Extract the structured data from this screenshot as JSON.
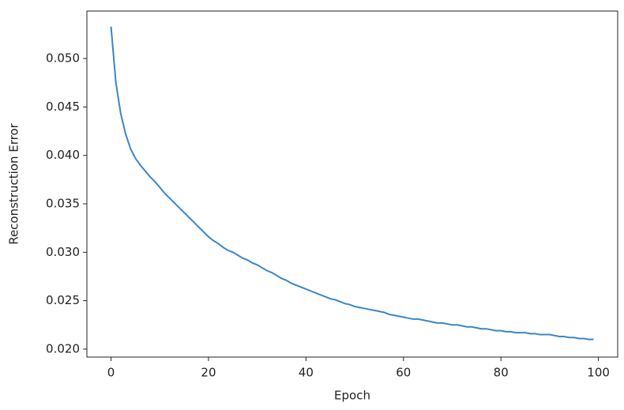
{
  "chart_data": {
    "type": "line",
    "x_label": "Epoch",
    "y_label": "Reconstruction Error",
    "x": [
      0,
      1,
      2,
      3,
      4,
      5,
      6,
      7,
      8,
      9,
      10,
      11,
      12,
      13,
      14,
      15,
      16,
      17,
      18,
      19,
      20,
      21,
      22,
      23,
      24,
      25,
      26,
      27,
      28,
      29,
      30,
      31,
      32,
      33,
      34,
      35,
      36,
      37,
      38,
      39,
      40,
      41,
      42,
      43,
      44,
      45,
      46,
      47,
      48,
      49,
      50,
      51,
      52,
      53,
      54,
      55,
      56,
      57,
      58,
      59,
      60,
      61,
      62,
      63,
      64,
      65,
      66,
      67,
      68,
      69,
      70,
      71,
      72,
      73,
      74,
      75,
      76,
      77,
      78,
      79,
      80,
      81,
      82,
      83,
      84,
      85,
      86,
      87,
      88,
      89,
      90,
      91,
      92,
      93,
      94,
      95,
      96,
      97,
      98,
      99
    ],
    "series": [
      {
        "color": "#3a86c8",
        "values": [
          0.0533,
          0.0475,
          0.0443,
          0.0422,
          0.0407,
          0.0397,
          0.039,
          0.0384,
          0.0378,
          0.0373,
          0.0367,
          0.0361,
          0.0356,
          0.0351,
          0.0346,
          0.0341,
          0.0336,
          0.0331,
          0.0326,
          0.0321,
          0.0316,
          0.0312,
          0.0309,
          0.0305,
          0.0302,
          0.03,
          0.0297,
          0.0294,
          0.0292,
          0.0289,
          0.0287,
          0.0284,
          0.0281,
          0.0279,
          0.0276,
          0.0273,
          0.0271,
          0.0268,
          0.0266,
          0.0264,
          0.0262,
          0.026,
          0.0258,
          0.0256,
          0.0254,
          0.0252,
          0.0251,
          0.0249,
          0.0247,
          0.0246,
          0.0244,
          0.0243,
          0.0242,
          0.0241,
          0.024,
          0.0239,
          0.0238,
          0.0236,
          0.0235,
          0.0234,
          0.0233,
          0.0232,
          0.0231,
          0.0231,
          0.023,
          0.0229,
          0.0228,
          0.0227,
          0.0227,
          0.0226,
          0.0225,
          0.0225,
          0.0224,
          0.0223,
          0.0223,
          0.0222,
          0.0221,
          0.0221,
          0.022,
          0.0219,
          0.0219,
          0.0218,
          0.0218,
          0.0217,
          0.0217,
          0.0217,
          0.0216,
          0.0216,
          0.0215,
          0.0215,
          0.0215,
          0.0214,
          0.0213,
          0.0213,
          0.0212,
          0.0212,
          0.0211,
          0.0211,
          0.021,
          0.021
        ]
      }
    ],
    "xlim": [
      -4.95,
      103.95
    ],
    "xticks": [
      0,
      20,
      40,
      60,
      80,
      100
    ],
    "ylim": [
      0.01918,
      0.0549
    ],
    "yticks": [
      {
        "value": 0.02,
        "label": "0.020"
      },
      {
        "value": 0.025,
        "label": "0.025"
      },
      {
        "value": 0.03,
        "label": "0.030"
      },
      {
        "value": 0.035,
        "label": "0.035"
      },
      {
        "value": 0.04,
        "label": "0.040"
      },
      {
        "value": 0.045,
        "label": "0.045"
      },
      {
        "value": 0.05,
        "label": "0.050"
      }
    ],
    "grid": false
  }
}
